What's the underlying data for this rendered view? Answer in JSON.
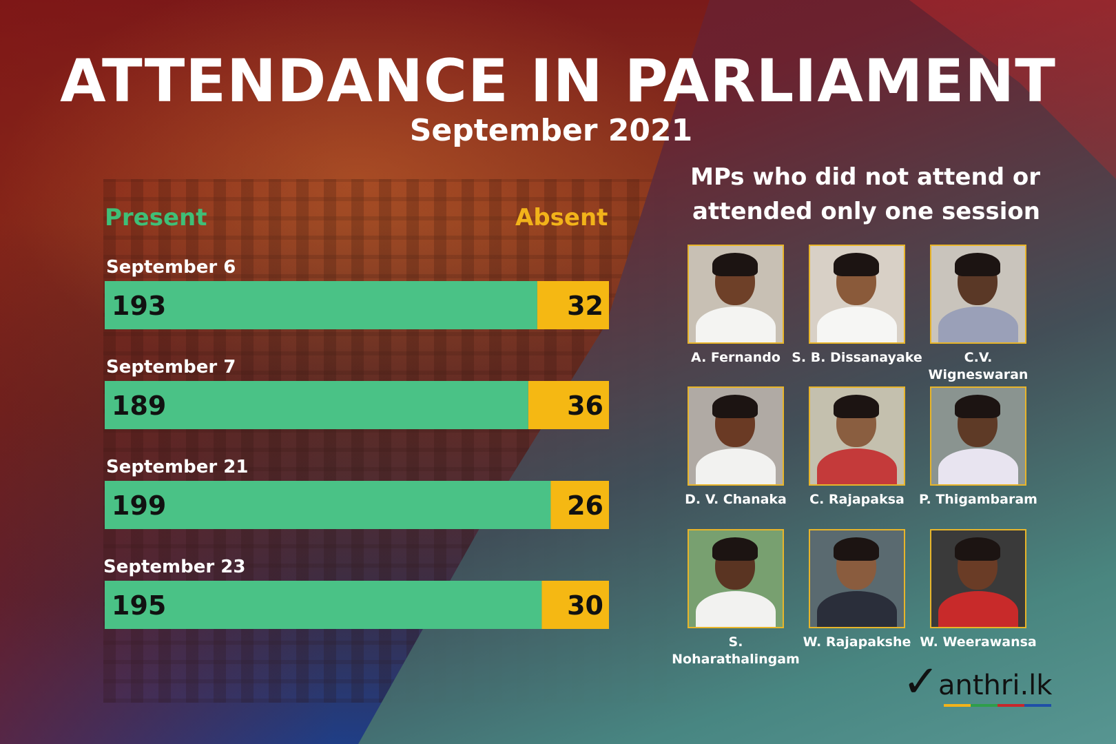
{
  "title": "ATTENDANCE IN PARLIAMENT",
  "subtitle": "September 2021",
  "legend": {
    "present": "Present",
    "absent": "Absent"
  },
  "colors": {
    "present": "#4ac286",
    "absent": "#f5b813",
    "value_text": "#111111"
  },
  "chart_data": {
    "type": "bar",
    "orientation": "horizontal-stacked",
    "categories": [
      "September 6",
      "September 7",
      "September 21",
      "September 23"
    ],
    "series": [
      {
        "name": "Present",
        "values": [
          193,
          189,
          199,
          195
        ]
      },
      {
        "name": "Absent",
        "values": [
          32,
          36,
          26,
          30
        ]
      }
    ],
    "total": 225
  },
  "mps_heading": "MPs who did not attend or attended only one session",
  "mps": [
    {
      "name": "A. Fernando"
    },
    {
      "name": "S. B. Dissanayake"
    },
    {
      "name": "C.V. Wigneswaran"
    },
    {
      "name": "D. V. Chanaka"
    },
    {
      "name": "C. Rajapaksa"
    },
    {
      "name": "P. Thigambaram"
    },
    {
      "name": "S. Noharathalingam"
    },
    {
      "name": "W. Rajapakshe"
    },
    {
      "name": "W. Weerawansa"
    }
  ],
  "logo": {
    "text": "anthri.lk",
    "stripe_colors": [
      "#f2b31a",
      "#2e9e4a",
      "#c8262b",
      "#1f4fa8"
    ]
  }
}
